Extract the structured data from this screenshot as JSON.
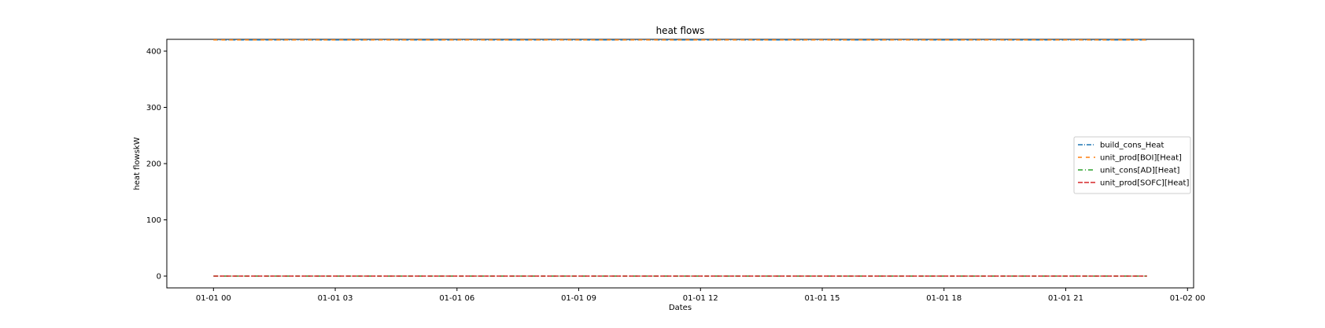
{
  "chart_data": {
    "type": "line",
    "title": "heat flows",
    "xlabel": "Dates",
    "ylabel": "heat flowskW",
    "x_ticks": [
      "01-01 00",
      "01-01 03",
      "01-01 06",
      "01-01 09",
      "01-01 12",
      "01-01 15",
      "01-01 18",
      "01-01 21",
      "01-02 00"
    ],
    "xlim_hours": [
      -1.15,
      24.15
    ],
    "x_start_label": "01-01 00",
    "x_end_hour": 23,
    "ylim": [
      -21,
      421
    ],
    "y_ticks": [
      0,
      100,
      200,
      300,
      400
    ],
    "grid": false,
    "legend_position": "right",
    "series": [
      {
        "name": "build_cons_Heat",
        "color": "#1f77b4",
        "dash": "6,2,1,2",
        "values_constant": 420
      },
      {
        "name": "unit_prod[BOI][Heat]",
        "color": "#ff7f0e",
        "dash": "5,5",
        "values_constant": 420
      },
      {
        "name": "unit_cons[AD][Heat]",
        "color": "#2ca02c",
        "dash": "6,3,1,3",
        "values_constant": 0
      },
      {
        "name": "unit_prod[SOFC][Heat]",
        "color": "#d62728",
        "dash": "6,2",
        "values_constant": 0
      }
    ]
  }
}
